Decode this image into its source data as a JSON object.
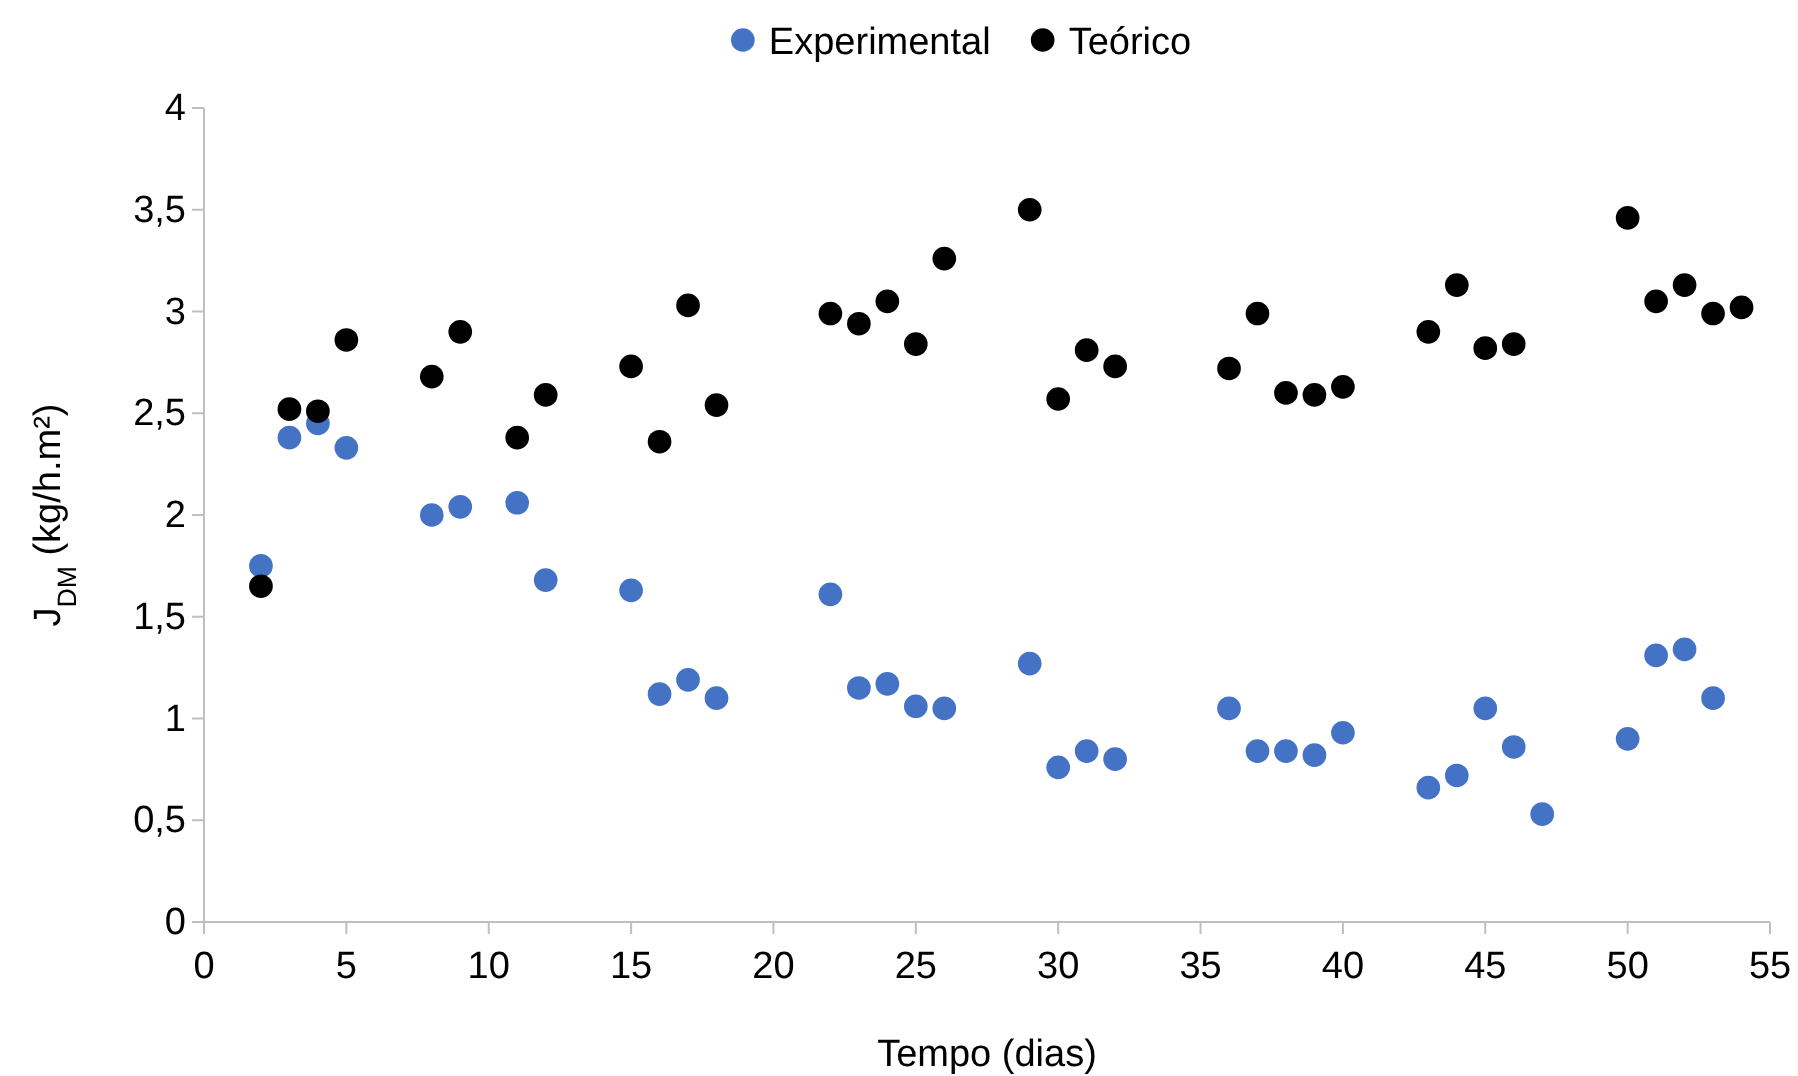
{
  "chart_data": {
    "type": "scatter",
    "xlabel": "Tempo (dias)",
    "ylabel": "J$_{DM}$ (kg/h.m²)",
    "legend": "top",
    "marker": "circle",
    "grid": false,
    "xlim": [
      0,
      55
    ],
    "xticks": [
      0,
      5,
      10,
      15,
      20,
      25,
      30,
      35,
      40,
      45,
      50,
      55
    ],
    "ylim": [
      0,
      4
    ],
    "yticks": [
      0,
      {
        "value": 0.5,
        "label": "0,5"
      },
      1,
      {
        "value": 1.5,
        "label": "1,5"
      },
      2,
      {
        "value": 2.5,
        "label": "2,5"
      },
      3,
      {
        "value": 3.5,
        "label": "3,5"
      },
      4
    ],
    "series": [
      {
        "name": "Experimental",
        "color": "#4472c4",
        "x": [
          2,
          3,
          4,
          5,
          8,
          9,
          11,
          12,
          15,
          16,
          17,
          18,
          22,
          23,
          24,
          25,
          26,
          29,
          30,
          31,
          32,
          36,
          37,
          38,
          39,
          40,
          43,
          44,
          45,
          46,
          47,
          50,
          51,
          52,
          53
        ],
        "values": [
          1.75,
          2.38,
          2.45,
          2.33,
          2.0,
          2.04,
          2.06,
          1.68,
          1.63,
          1.12,
          1.19,
          1.1,
          1.61,
          1.15,
          1.17,
          1.06,
          1.05,
          1.27,
          0.76,
          0.84,
          0.8,
          1.05,
          0.84,
          0.84,
          0.82,
          0.93,
          0.66,
          0.72,
          1.05,
          0.86,
          0.53,
          0.9,
          1.31,
          1.34,
          1.1
        ]
      },
      {
        "name": "Teórico",
        "color": "#000000",
        "x": [
          2,
          3,
          4,
          5,
          8,
          9,
          11,
          12,
          15,
          16,
          17,
          18,
          22,
          23,
          24,
          25,
          26,
          29,
          30,
          31,
          32,
          36,
          37,
          38,
          39,
          40,
          43,
          44,
          45,
          46,
          50,
          51,
          52,
          53,
          54
        ],
        "values": [
          1.65,
          2.52,
          2.51,
          2.86,
          2.68,
          2.9,
          2.38,
          2.59,
          2.73,
          2.36,
          3.03,
          2.54,
          2.99,
          2.94,
          3.05,
          2.84,
          3.26,
          3.5,
          2.57,
          2.81,
          2.73,
          2.72,
          2.99,
          2.6,
          2.59,
          2.63,
          2.9,
          3.13,
          2.82,
          2.84,
          3.46,
          3.05,
          3.13,
          2.99,
          3.02
        ]
      }
    ]
  }
}
